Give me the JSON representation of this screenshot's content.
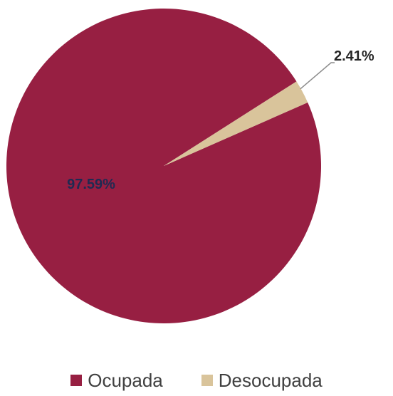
{
  "chart_data": {
    "type": "pie",
    "categories": [
      "Ocupada",
      "Desocupada"
    ],
    "values": [
      97.59,
      2.41
    ],
    "data_labels": [
      "97.59%",
      "2.41%"
    ],
    "colors": [
      "#971f42",
      "#d9c49b"
    ],
    "label_colors": [
      "#1f2a52",
      "#262626"
    ],
    "legend_position": "bottom"
  }
}
